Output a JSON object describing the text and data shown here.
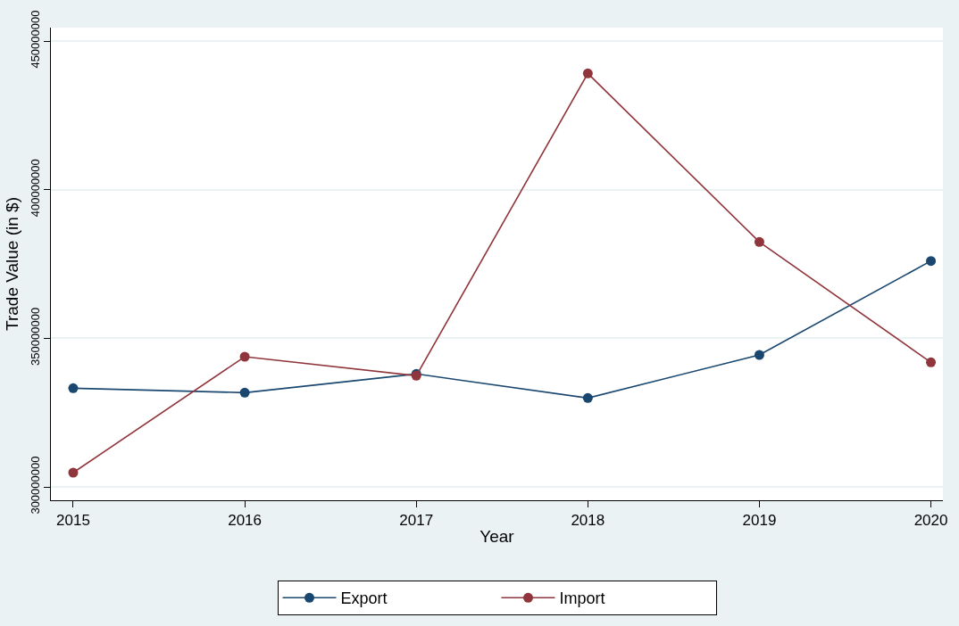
{
  "chart_data": {
    "type": "line",
    "xlabel": "Year",
    "ylabel": "Trade Value (in $)",
    "x": [
      2015,
      2016,
      2017,
      2018,
      2019,
      2020
    ],
    "series": [
      {
        "name": "Export",
        "color": "#1a476f",
        "values": [
          333200000,
          331700000,
          338000000,
          329900000,
          344400000,
          376000000
        ]
      },
      {
        "name": "Import",
        "color": "#90353b",
        "values": [
          304800000,
          343800000,
          337400000,
          439100000,
          382400000,
          341900000
        ]
      }
    ],
    "xlim": [
      2014.87,
      2020.07
    ],
    "xticks": [
      2015,
      2016,
      2017,
      2018,
      2019,
      2020
    ],
    "ylim": [
      295500000,
      454500000
    ],
    "yticks": [
      300000000,
      350000000,
      400000000,
      450000000
    ],
    "grid": "y",
    "legend": "bottom",
    "marker": "circle",
    "line_style": "solid"
  }
}
